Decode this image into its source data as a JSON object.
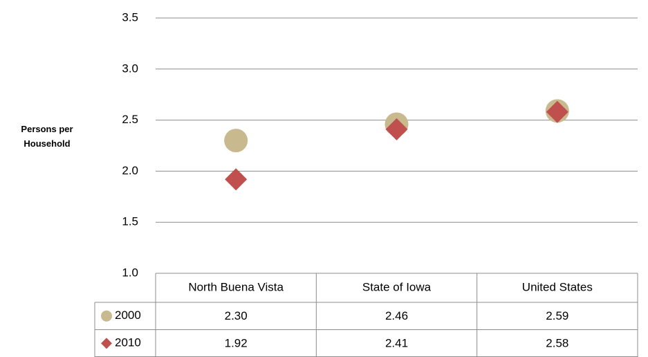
{
  "chart_data": {
    "type": "dot",
    "y_label": "Persons per Household",
    "categories": [
      "North Buena Vista",
      "State of Iowa",
      "United States"
    ],
    "series": [
      {
        "name": "2000",
        "color": "#c9b98f",
        "marker": "circle",
        "values": [
          2.3,
          2.46,
          2.59
        ],
        "value_labels": [
          "2.30",
          "2.46",
          "2.59"
        ]
      },
      {
        "name": "2010",
        "color": "#c0504d",
        "marker": "diamond",
        "values": [
          1.92,
          2.41,
          2.58
        ],
        "value_labels": [
          "1.92",
          "2.41",
          "2.58"
        ]
      }
    ],
    "ylim": [
      1,
      3.5
    ],
    "yticks": [
      {
        "value": 1,
        "label": "1.0"
      },
      1.5,
      {
        "value": 2,
        "label": "2.0"
      },
      2.5,
      {
        "value": 3,
        "label": "3.0"
      },
      3.5
    ],
    "grid": true,
    "data_table": true
  }
}
